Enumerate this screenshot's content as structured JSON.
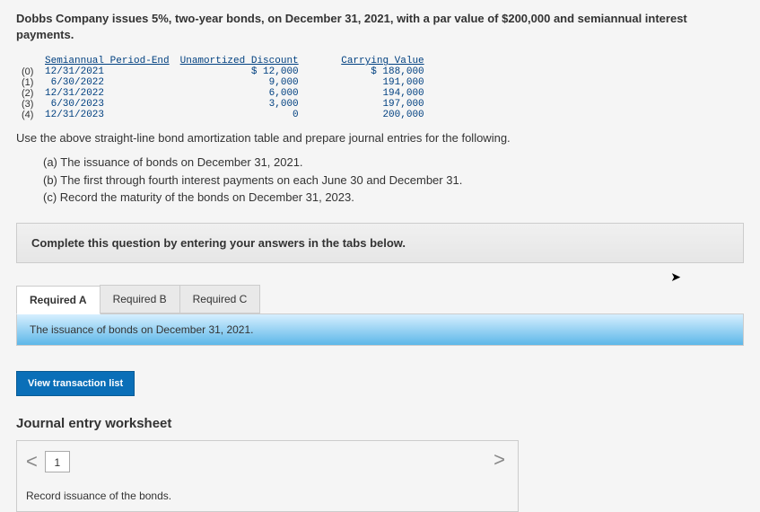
{
  "intro": "Dobbs Company issues 5%, two-year bonds, on December 31, 2021, with a par value of $200,000 and semiannual interest payments.",
  "amort": {
    "headers": [
      "Semiannual Period-End",
      "Unamortized Discount",
      "Carrying Value"
    ],
    "rows": [
      {
        "idx": "(0)",
        "date": "12/31/2021",
        "discount": "$ 12,000",
        "carry": "$ 188,000"
      },
      {
        "idx": "(1)",
        "date": " 6/30/2022",
        "discount": "9,000",
        "carry": "191,000"
      },
      {
        "idx": "(2)",
        "date": "12/31/2022",
        "discount": "6,000",
        "carry": "194,000"
      },
      {
        "idx": "(3)",
        "date": " 6/30/2023",
        "discount": "3,000",
        "carry": "197,000"
      },
      {
        "idx": "(4)",
        "date": "12/31/2023",
        "discount": "0",
        "carry": "200,000"
      }
    ]
  },
  "instr": "Use the above straight-line bond amortization table and prepare journal entries for the following.",
  "parts": {
    "a": "(a) The issuance of bonds on December 31, 2021.",
    "b": "(b) The first through fourth interest payments on each June 30 and December 31.",
    "c": "(c) Record the maturity of the bonds on December 31, 2023."
  },
  "complete_bar": "Complete this question by entering your answers in the tabs below.",
  "tabs": {
    "a": "Required A",
    "b": "Required B",
    "c": "Required C"
  },
  "tab_content": "The issuance of bonds on December 31, 2021.",
  "view_trans": "View transaction list",
  "journal": {
    "title": "Journal entry worksheet",
    "page": "1",
    "line": "Record issuance of the bonds.",
    "chev_left": "<",
    "chev_right": ">"
  },
  "colors": {
    "link_blue": "#004080",
    "button_blue": "#0a6fb8",
    "bg": "#f5f5f5"
  }
}
